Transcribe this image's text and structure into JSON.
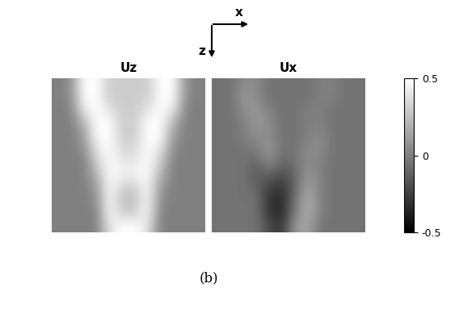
{
  "chart_data": [
    {
      "type": "heatmap",
      "title": "Uz",
      "color": "gray",
      "tick_labels": false,
      "cells": [
        [
          0,
          0.05,
          0.5,
          0.5,
          0.3,
          0.3,
          0.3,
          0.3,
          0.5,
          0.5,
          0.05,
          0
        ],
        [
          0,
          0.05,
          0.5,
          0.5,
          0.3,
          0.3,
          0.3,
          0.3,
          0.5,
          0.5,
          0.05,
          0
        ],
        [
          0,
          0,
          0.4,
          0.5,
          0.4,
          0.3,
          0.3,
          0.4,
          0.5,
          0.4,
          0,
          0
        ],
        [
          0,
          0,
          0.2,
          0.5,
          0.5,
          0.3,
          0.3,
          0.5,
          0.5,
          0.2,
          0,
          0
        ],
        [
          0,
          0,
          0.1,
          0.5,
          0.5,
          0.3,
          0.3,
          0.5,
          0.5,
          0.1,
          0,
          0
        ],
        [
          0,
          0,
          0.05,
          0.4,
          0.5,
          0.35,
          0.35,
          0.5,
          0.4,
          0.05,
          0,
          0
        ],
        [
          0,
          0,
          0,
          0.3,
          0.5,
          0.4,
          0.4,
          0.5,
          0.3,
          0,
          0,
          0
        ],
        [
          0,
          0,
          0,
          0.2,
          0.5,
          0.45,
          0.45,
          0.5,
          0.2,
          0,
          0,
          0
        ],
        [
          0,
          0,
          0,
          0.1,
          0.5,
          0.3,
          0.3,
          0.5,
          0.1,
          0,
          0,
          0
        ],
        [
          0,
          0,
          0,
          0.05,
          0.5,
          0.25,
          0.25,
          0.5,
          0.05,
          0,
          0,
          0
        ],
        [
          0,
          0,
          0,
          0,
          0.5,
          0.3,
          0.3,
          0.5,
          0,
          0,
          0,
          0
        ],
        [
          0,
          0,
          0,
          0,
          0.4,
          0.5,
          0.5,
          0.4,
          0,
          0,
          0,
          0
        ]
      ]
    },
    {
      "type": "heatmap",
      "title": "Ux",
      "color": "gray",
      "tick_labels": false,
      "cells": [
        [
          -0.05,
          -0.05,
          0.05,
          0.05,
          -0.05,
          -0.05,
          -0.05,
          -0.05,
          0,
          0,
          -0.05,
          -0.05
        ],
        [
          -0.05,
          -0.05,
          0.1,
          0.05,
          -0.05,
          -0.05,
          -0.05,
          -0.05,
          0,
          0,
          -0.05,
          -0.05
        ],
        [
          -0.05,
          -0.05,
          0.05,
          0.1,
          0,
          -0.05,
          -0.05,
          0,
          0,
          -0.05,
          -0.05,
          -0.05
        ],
        [
          -0.05,
          -0.05,
          0,
          0.1,
          0.05,
          -0.05,
          -0.05,
          0,
          0,
          -0.05,
          -0.05,
          -0.05
        ],
        [
          -0.05,
          -0.05,
          0,
          0.05,
          0.05,
          -0.05,
          -0.05,
          0,
          0.05,
          -0.05,
          -0.05,
          -0.05
        ],
        [
          -0.05,
          -0.05,
          -0.05,
          0,
          0.1,
          -0.05,
          -0.05,
          0.05,
          0.05,
          -0.05,
          -0.05,
          -0.05
        ],
        [
          -0.05,
          -0.05,
          -0.05,
          -0.1,
          0.05,
          -0.1,
          -0.05,
          0.05,
          0,
          -0.05,
          -0.05,
          -0.05
        ],
        [
          -0.05,
          -0.05,
          -0.05,
          -0.15,
          -0.1,
          -0.2,
          -0.1,
          0.1,
          0,
          -0.05,
          -0.05,
          -0.05
        ],
        [
          -0.05,
          -0.05,
          -0.05,
          -0.1,
          -0.25,
          -0.3,
          -0.1,
          0.15,
          0,
          -0.05,
          -0.05,
          -0.05
        ],
        [
          -0.05,
          -0.05,
          -0.05,
          -0.05,
          -0.3,
          -0.35,
          -0.05,
          0.2,
          0,
          -0.05,
          -0.05,
          -0.05
        ],
        [
          -0.05,
          -0.05,
          -0.05,
          -0.05,
          -0.3,
          -0.35,
          0,
          0.2,
          0,
          -0.05,
          -0.05,
          -0.05
        ],
        [
          -0.05,
          -0.05,
          -0.05,
          -0.05,
          -0.2,
          -0.3,
          0.1,
          0.15,
          -0.05,
          -0.05,
          -0.05,
          -0.05
        ]
      ]
    }
  ],
  "colorbar": {
    "range": [
      -0.5,
      0.5
    ],
    "ticks": [
      -0.5,
      0,
      0.5
    ]
  },
  "axis_arrows": {
    "horizontal": "x",
    "vertical": "z"
  },
  "caption": "(b)"
}
